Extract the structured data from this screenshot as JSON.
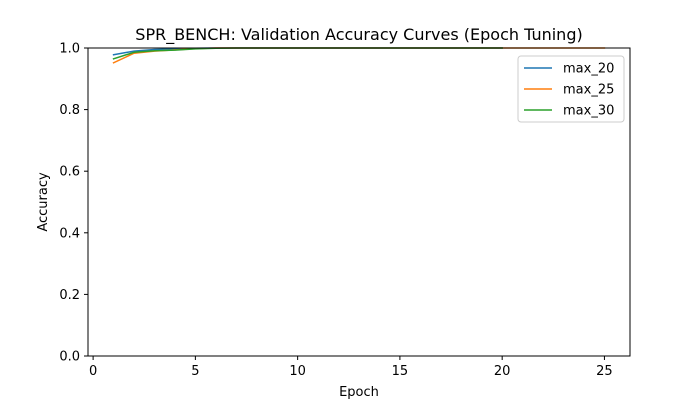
{
  "chart_data": {
    "type": "line",
    "title": "SPR_BENCH: Validation Accuracy Curves (Epoch Tuning)",
    "xlabel": "Epoch",
    "ylabel": "Accuracy",
    "xlim": [
      -0.25,
      26.25
    ],
    "ylim": [
      0.0,
      1.0
    ],
    "xticks": [
      0,
      5,
      10,
      15,
      20,
      25
    ],
    "yticks": [
      0.0,
      0.2,
      0.4,
      0.6,
      0.8,
      1.0
    ],
    "xtick_labels": [
      "0",
      "5",
      "10",
      "15",
      "20",
      "25"
    ],
    "ytick_labels": [
      "0.0",
      "0.2",
      "0.4",
      "0.6",
      "0.8",
      "1.0"
    ],
    "grid": false,
    "legend_position": "top-right",
    "series": [
      {
        "name": "max_20",
        "color": "#1f77b4",
        "x": [
          1,
          2,
          3,
          4,
          5,
          6,
          7,
          8,
          9,
          10,
          11,
          12,
          13,
          14,
          15,
          16,
          17,
          18,
          19,
          20
        ],
        "y": [
          0.978,
          0.99,
          0.995,
          0.997,
          0.999,
          1.0,
          1.0,
          1.0,
          1.0,
          1.0,
          1.0,
          1.0,
          1.0,
          1.0,
          1.0,
          1.0,
          1.0,
          1.0,
          1.0,
          1.0
        ]
      },
      {
        "name": "max_25",
        "color": "#ff7f0e",
        "x": [
          1,
          2,
          3,
          4,
          5,
          6,
          7,
          8,
          9,
          10,
          11,
          12,
          13,
          14,
          15,
          16,
          17,
          18,
          19,
          20,
          21,
          22,
          23,
          24,
          25
        ],
        "y": [
          0.952,
          0.983,
          0.99,
          0.994,
          0.998,
          1.0,
          1.0,
          1.0,
          1.0,
          1.0,
          1.0,
          1.0,
          1.0,
          1.0,
          1.0,
          1.0,
          1.0,
          1.0,
          1.0,
          1.0,
          1.0,
          1.0,
          1.0,
          1.0,
          1.0
        ]
      },
      {
        "name": "max_30",
        "color": "#2ca02c",
        "x": [
          1,
          2,
          3,
          4,
          5,
          6,
          7,
          8,
          9,
          10,
          11,
          12,
          13,
          14,
          15,
          16,
          17,
          18,
          19,
          20
        ],
        "y": [
          0.965,
          0.986,
          0.991,
          0.993,
          0.997,
          0.999,
          1.0,
          1.0,
          1.0,
          1.0,
          1.0,
          1.0,
          1.0,
          1.0,
          1.0,
          1.0,
          1.0,
          1.0,
          1.0,
          1.0
        ]
      }
    ]
  }
}
